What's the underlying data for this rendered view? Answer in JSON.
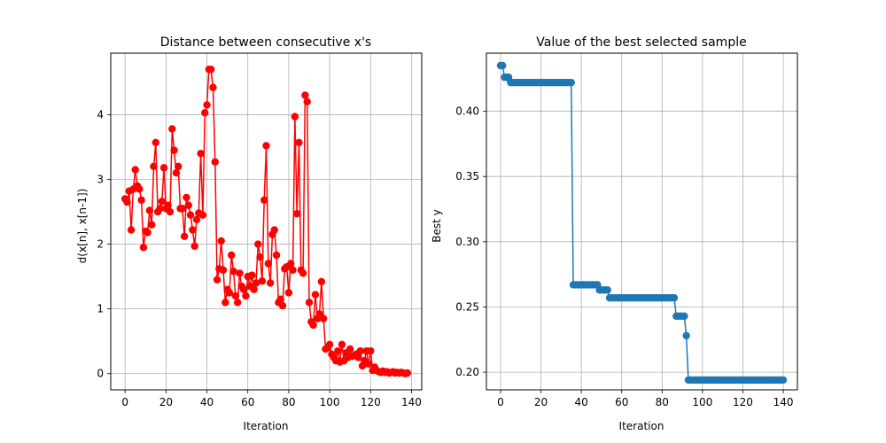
{
  "chart_data": [
    {
      "type": "line",
      "title": "Distance between consecutive x's",
      "xlabel": "Iteration",
      "ylabel": "d(x[n], x[n-1])",
      "xlim": [
        -7,
        145
      ],
      "ylim": [
        -0.25,
        4.95
      ],
      "xticks": [
        0,
        20,
        40,
        60,
        80,
        100,
        120,
        140
      ],
      "yticks": [
        0,
        1,
        2,
        3,
        4
      ],
      "grid": true,
      "marker": "circle",
      "color": "#ff0000",
      "x": [
        0,
        1,
        2,
        3,
        4,
        5,
        6,
        7,
        8,
        9,
        10,
        11,
        12,
        13,
        14,
        15,
        16,
        17,
        18,
        19,
        20,
        21,
        22,
        23,
        24,
        25,
        26,
        27,
        28,
        29,
        30,
        31,
        32,
        33,
        34,
        35,
        36,
        37,
        38,
        39,
        40,
        41,
        42,
        43,
        44,
        45,
        46,
        47,
        48,
        49,
        50,
        51,
        52,
        53,
        54,
        55,
        56,
        57,
        58,
        59,
        60,
        61,
        62,
        63,
        64,
        65,
        66,
        67,
        68,
        69,
        70,
        71,
        72,
        73,
        74,
        75,
        76,
        77,
        78,
        79,
        80,
        81,
        82,
        83,
        84,
        85,
        86,
        87,
        88,
        89,
        90,
        91,
        92,
        93,
        94,
        95,
        96,
        97,
        98,
        99,
        100,
        101,
        102,
        103,
        104,
        105,
        106,
        107,
        108,
        109,
        110,
        111,
        112,
        113,
        114,
        115,
        116,
        117,
        118,
        119,
        120,
        121,
        122,
        123,
        124,
        125,
        126,
        127,
        128,
        129,
        130,
        131,
        132,
        133,
        134,
        135,
        136,
        137,
        138
      ],
      "values": [
        2.7,
        2.65,
        2.82,
        2.22,
        2.85,
        3.15,
        2.9,
        2.85,
        2.68,
        1.95,
        2.2,
        2.18,
        2.52,
        2.3,
        3.2,
        3.57,
        2.5,
        2.55,
        2.66,
        3.18,
        2.55,
        2.6,
        2.5,
        3.78,
        3.45,
        3.1,
        3.2,
        2.55,
        2.55,
        2.12,
        2.72,
        2.6,
        2.45,
        2.22,
        1.97,
        2.38,
        2.48,
        3.4,
        2.45,
        4.03,
        4.15,
        4.7,
        4.7,
        4.42,
        3.27,
        1.45,
        1.62,
        2.05,
        1.6,
        1.1,
        1.3,
        1.25,
        1.83,
        1.58,
        1.2,
        1.1,
        1.55,
        1.35,
        1.3,
        1.2,
        1.5,
        1.35,
        1.52,
        1.3,
        1.4,
        2.0,
        1.8,
        1.43,
        2.68,
        3.52,
        1.7,
        1.4,
        2.15,
        2.22,
        1.83,
        1.1,
        1.15,
        1.05,
        1.62,
        1.65,
        1.25,
        1.7,
        1.6,
        3.97,
        2.47,
        3.57,
        1.6,
        1.55,
        4.3,
        4.2,
        1.1,
        0.8,
        0.75,
        1.22,
        0.85,
        0.92,
        1.42,
        0.85,
        0.38,
        0.4,
        0.45,
        0.3,
        0.25,
        0.2,
        0.35,
        0.18,
        0.45,
        0.2,
        0.32,
        0.25,
        0.38,
        0.27,
        0.28,
        0.3,
        0.25,
        0.35,
        0.12,
        0.2,
        0.35,
        0.15,
        0.35,
        0.05,
        0.1,
        0.05,
        0.03,
        0.02,
        0.04,
        0.02,
        0.03,
        0.01,
        0.02,
        0.03,
        0.01,
        0.02,
        0.01,
        0.02,
        0.01,
        0.0,
        0.01
      ]
    },
    {
      "type": "line",
      "title": "Value of the best selected sample",
      "xlabel": "Iteration",
      "ylabel": "Best y",
      "xlim": [
        -7,
        147
      ],
      "ylim": [
        0.1865,
        0.4445
      ],
      "xticks": [
        0,
        20,
        40,
        60,
        80,
        100,
        120,
        140
      ],
      "yticks": [
        0.2,
        0.25,
        0.3,
        0.35,
        0.4
      ],
      "ytick_labels": [
        "0.20",
        "0.25",
        "0.30",
        "0.35",
        "0.40"
      ],
      "grid": true,
      "marker": "circle",
      "color": "#1f77b4",
      "segments": [
        {
          "from": 0,
          "to": 1,
          "value": 0.435
        },
        {
          "from": 2,
          "to": 4,
          "value": 0.426
        },
        {
          "from": 5,
          "to": 35,
          "value": 0.422
        },
        {
          "from": 36,
          "to": 48,
          "value": 0.267
        },
        {
          "from": 49,
          "to": 53,
          "value": 0.263
        },
        {
          "from": 54,
          "to": 86,
          "value": 0.257
        },
        {
          "from": 87,
          "to": 91,
          "value": 0.243
        },
        {
          "from": 92,
          "to": 92,
          "value": 0.228
        },
        {
          "from": 93,
          "to": 140,
          "value": 0.194
        }
      ]
    }
  ]
}
